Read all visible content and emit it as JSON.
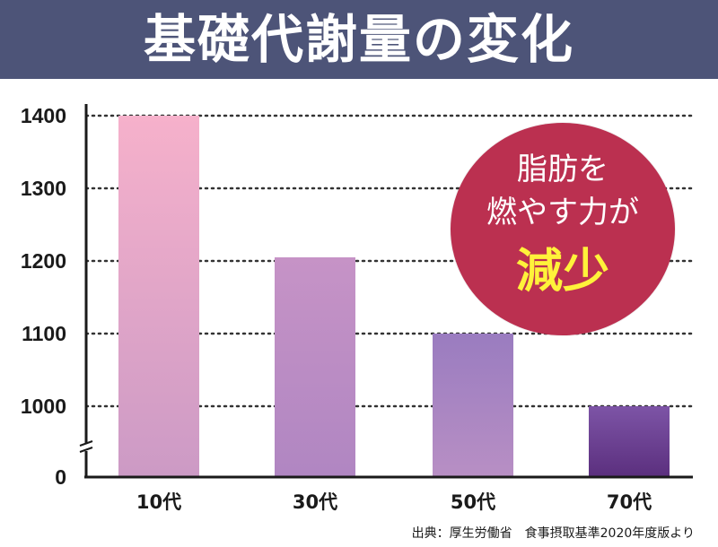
{
  "title": "基礎代謝量の変化",
  "badge": {
    "line1": "脂肪を",
    "line2": "燃やす力が",
    "line3": "減少"
  },
  "source": "出典：厚生労働省　食事摂取基準2020年度版より",
  "colors": {
    "banner": "#4d5478",
    "badge": "#bb3050",
    "badge_highlight": "#fff23a",
    "grid": "#333333"
  },
  "chart_data": {
    "type": "bar",
    "title": "基礎代謝量の変化",
    "xlabel": "",
    "ylabel": "",
    "categories": [
      "10代",
      "30代",
      "50代",
      "70代"
    ],
    "values": [
      1400,
      1205,
      1100,
      1000
    ],
    "y_ticks": [
      "1400",
      "1300",
      "1200",
      "1100",
      "1000",
      "0"
    ],
    "y_axis_break": {
      "from": 0,
      "to": 1000
    },
    "grid": "horizontal-dotted",
    "bar_colors": [
      [
        "#f6b1cb",
        "#cc9ac5"
      ],
      [
        "#c693c6",
        "#b086c2"
      ],
      [
        "#9a7cc0",
        "#b88fc4"
      ],
      [
        "#7d54a6",
        "#5b2f7e"
      ]
    ]
  }
}
